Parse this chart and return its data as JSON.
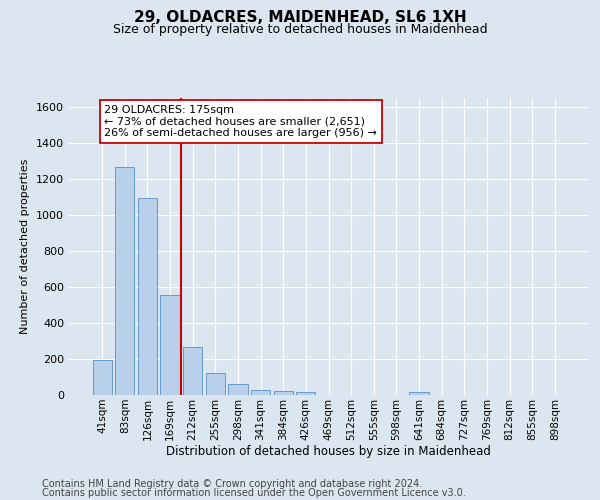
{
  "title1": "29, OLDACRES, MAIDENHEAD, SL6 1XH",
  "title2": "Size of property relative to detached houses in Maidenhead",
  "xlabel": "Distribution of detached houses by size in Maidenhead",
  "ylabel": "Number of detached properties",
  "footer1": "Contains HM Land Registry data © Crown copyright and database right 2024.",
  "footer2": "Contains public sector information licensed under the Open Government Licence v3.0.",
  "categories": [
    "41sqm",
    "83sqm",
    "126sqm",
    "169sqm",
    "212sqm",
    "255sqm",
    "298sqm",
    "341sqm",
    "384sqm",
    "426sqm",
    "469sqm",
    "512sqm",
    "555sqm",
    "598sqm",
    "641sqm",
    "684sqm",
    "727sqm",
    "769sqm",
    "812sqm",
    "855sqm",
    "898sqm"
  ],
  "values": [
    195,
    1265,
    1095,
    555,
    265,
    120,
    60,
    30,
    22,
    15,
    0,
    0,
    0,
    0,
    18,
    0,
    0,
    0,
    0,
    0,
    0
  ],
  "bar_color": "#b8d0ea",
  "bar_edge_color": "#6699cc",
  "vline_color": "#cc0000",
  "vline_x": 3.5,
  "annotation_text": "29 OLDACRES: 175sqm\n← 73% of detached houses are smaller (2,651)\n26% of semi-detached houses are larger (956) →",
  "annotation_box_facecolor": "#ffffff",
  "annotation_box_edgecolor": "#cc0000",
  "ylim": [
    0,
    1650
  ],
  "yticks": [
    0,
    200,
    400,
    600,
    800,
    1000,
    1200,
    1400,
    1600
  ],
  "bg_color": "#dce6f0",
  "grid_color": "#ffffff",
  "title1_fontsize": 11,
  "title2_fontsize": 9,
  "xlabel_fontsize": 8.5,
  "ylabel_fontsize": 8,
  "tick_fontsize": 8,
  "footer_fontsize": 7,
  "annot_fontsize": 8
}
